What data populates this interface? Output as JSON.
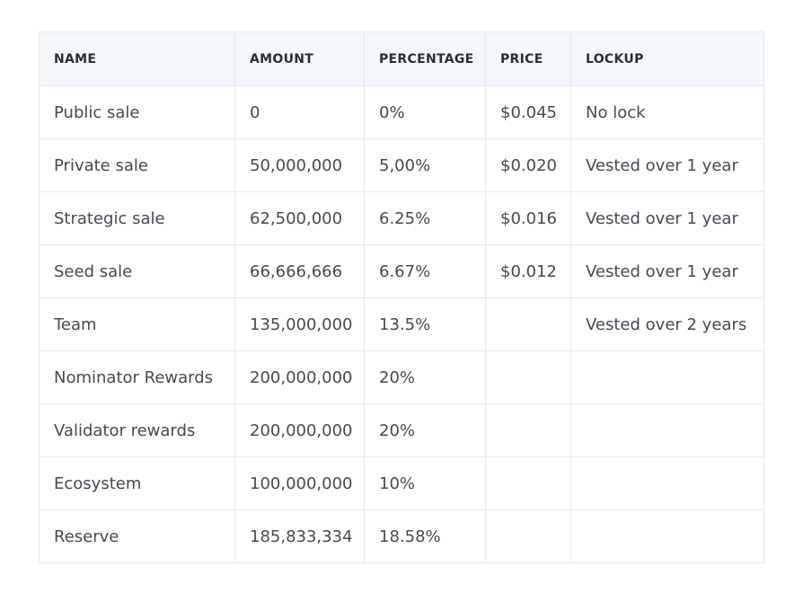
{
  "table": {
    "headers": [
      "NAME",
      "AMOUNT",
      "PERCENTAGE",
      "PRICE",
      "LOCKUP"
    ],
    "rows": [
      [
        "Public sale",
        "0",
        "0%",
        "$0.045",
        "No lock"
      ],
      [
        "Private sale",
        "50,000,000",
        "5,00%",
        "$0.020",
        "Vested over 1 year"
      ],
      [
        "Strategic sale",
        "62,500,000",
        "6.25%",
        "$0.016",
        "Vested over 1 year"
      ],
      [
        "Seed sale",
        "66,666,666",
        "6.67%",
        "$0.012",
        "Vested over 1 year"
      ],
      [
        "Team",
        "135,000,000",
        "13.5%",
        "",
        "Vested over 2 years"
      ],
      [
        "Nominator Rewards",
        "200,000,000",
        "20%",
        "",
        ""
      ],
      [
        "Validator rewards",
        "200,000,000",
        "20%",
        "",
        ""
      ],
      [
        "Ecosystem",
        "100,000,000",
        "10%",
        "",
        ""
      ],
      [
        "Reserve",
        "185,833,334",
        "18.58%",
        "",
        ""
      ]
    ]
  }
}
